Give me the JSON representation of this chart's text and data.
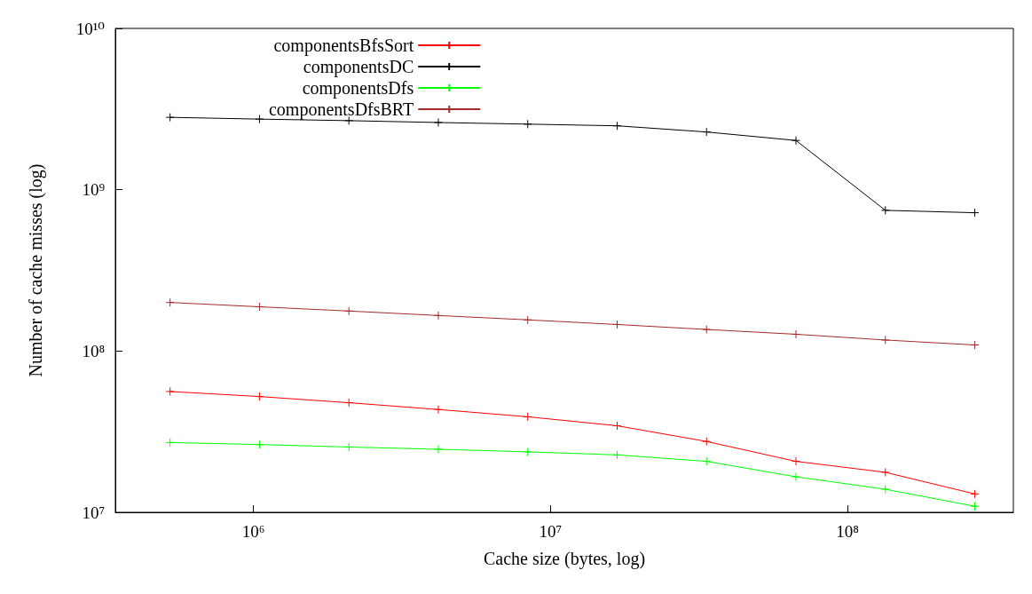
{
  "chart_data": {
    "type": "line",
    "xlabel": "Cache size (bytes, log)",
    "ylabel": "Number of cache misses (log)",
    "log": "xy",
    "marker": "cross",
    "legend": "top left",
    "grid": false,
    "x": [
      524288,
      1048576,
      2097152,
      4194304,
      8388608,
      16777216,
      33554432,
      67108864,
      134217728,
      268435456
    ],
    "xlim": [
      343000,
      362000000
    ],
    "xticks": [
      {
        "value": 1000000,
        "label": "10⁶"
      },
      {
        "value": 10000000,
        "label": "10⁷"
      },
      {
        "value": 100000000,
        "label": "10⁸"
      }
    ],
    "ylim": [
      10000000,
      10000000000
    ],
    "yticks": [
      {
        "value": 10000000,
        "label": "10⁷"
      },
      {
        "value": 100000000,
        "label": "10⁸"
      },
      {
        "value": 1000000000,
        "label": "10⁹"
      },
      {
        "value": 10000000000,
        "label": "10¹⁰"
      }
    ],
    "series": [
      {
        "name": "componentsBfsSort",
        "color": "#ff0000",
        "values": [
          56100000,
          52200000,
          47800000,
          43400000,
          39100000,
          34400000,
          27500000,
          20700000,
          17700000,
          13000000
        ]
      },
      {
        "name": "componentsDC",
        "color": "#000000",
        "values": [
          2810000000,
          2740000000,
          2680000000,
          2610000000,
          2550000000,
          2490000000,
          2280000000,
          2020000000,
          745000000,
          720000000
        ]
      },
      {
        "name": "componentsDfs",
        "color": "#00ff00",
        "values": [
          27100000,
          26300000,
          25400000,
          24600000,
          23700000,
          22700000,
          20700000,
          16600000,
          13900000,
          10900000
        ]
      },
      {
        "name": "componentsDfsBRT",
        "color": "#a52a2a",
        "values": [
          200000000,
          188000000,
          177000000,
          166000000,
          156000000,
          146000000,
          136000000,
          127000000,
          117000000,
          109000000
        ]
      }
    ]
  }
}
